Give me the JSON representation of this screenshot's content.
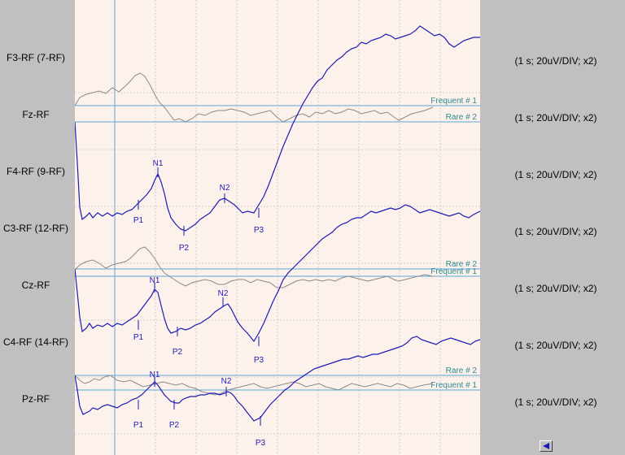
{
  "channels": [
    {
      "label": "F3-RF (7-RF)",
      "scale": "(1 s; 20uV/DIV; x2)"
    },
    {
      "label": "Fz-RF",
      "scale": "(1 s; 20uV/DIV; x2)"
    },
    {
      "label": "F4-RF (9-RF)",
      "scale": "(1 s; 20uV/DIV; x2)"
    },
    {
      "label": "C3-RF (12-RF)",
      "scale": "(1 s; 20uV/DIV; x2)"
    },
    {
      "label": "Cz-RF",
      "scale": "(1 s; 20uV/DIV; x2)"
    },
    {
      "label": "C4-RF (14-RF)",
      "scale": "(1 s; 20uV/DIV; x2)"
    },
    {
      "label": "Pz-RF",
      "scale": "(1 s; 20uV/DIV; x2)"
    }
  ],
  "marker_lines": [
    {
      "label": "Frequent # 1"
    },
    {
      "label": "Rare # 2"
    },
    {
      "label": "Rare # 2"
    },
    {
      "label": "Frequent # 1"
    },
    {
      "label": "Rare # 2"
    },
    {
      "label": "Frequent # 1"
    }
  ],
  "peaks": [
    {
      "label": "N1"
    },
    {
      "label": "P1"
    },
    {
      "label": "P2"
    },
    {
      "label": "N2"
    },
    {
      "label": "P3"
    },
    {
      "label": "N1"
    },
    {
      "label": "P1"
    },
    {
      "label": "P2"
    },
    {
      "label": "N2"
    },
    {
      "label": "P3"
    },
    {
      "label": "N1"
    },
    {
      "label": "P1"
    },
    {
      "label": "P2"
    },
    {
      "label": "N2"
    },
    {
      "label": "P3"
    }
  ],
  "colors": {
    "plot_background": "#fdf1ec",
    "grid": "#d0cdd0",
    "marker_line": "#5ba8d8",
    "marker_text": "#2e8a90",
    "rare_trace": "#1c1cb4",
    "frequent_trace": "#8a8a8a",
    "panel": "#c0c0c0"
  },
  "icons": {
    "nav_back": "triangle-left-icon"
  }
}
